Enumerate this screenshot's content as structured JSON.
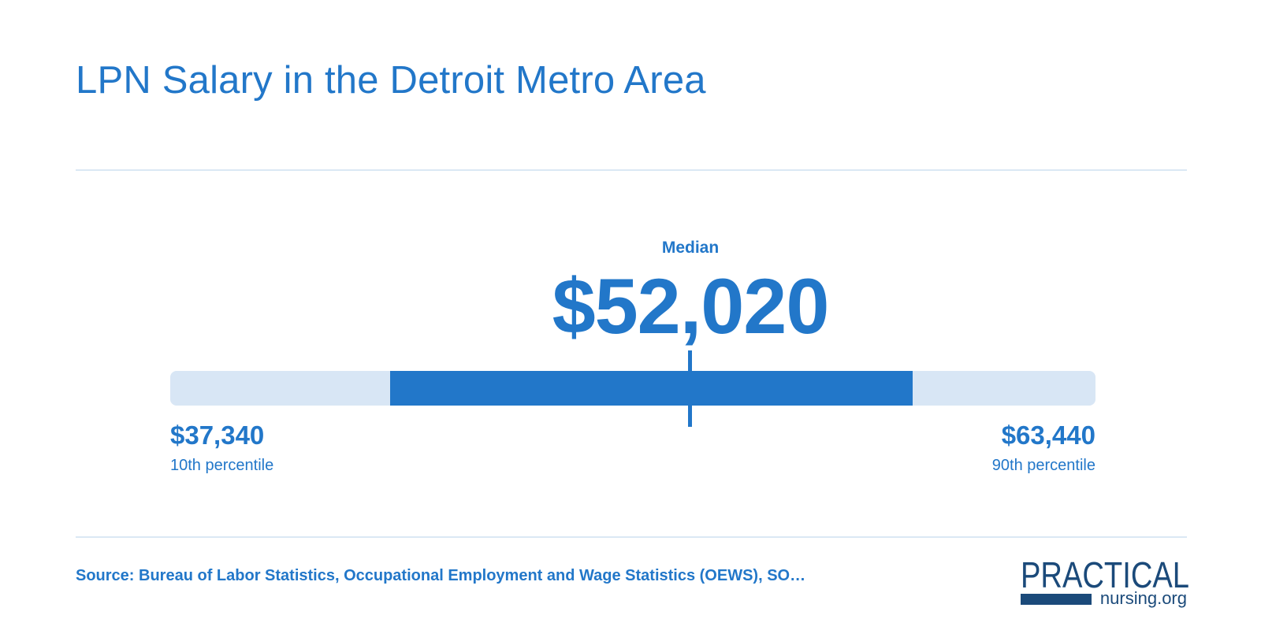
{
  "title": "LPN Salary in the Detroit Metro Area",
  "median": {
    "label": "Median",
    "value_text": "$52,020"
  },
  "low": {
    "value_text": "$37,340",
    "label": "10th percentile"
  },
  "high": {
    "value_text": "$63,440",
    "label": "90th percentile"
  },
  "source": "Source: Bureau of Labor Statistics, Occupational Employment and Wage Statistics (OEWS), SO…",
  "logo": {
    "word": "PRACTICAL",
    "domain": "nursing.org"
  },
  "colors": {
    "accent": "#2277c9",
    "track": "#d8e6f5",
    "divider": "#dbe8f4",
    "logo_navy": "#1b4a7a"
  },
  "chart_data": {
    "type": "range",
    "title": "LPN Salary in the Detroit Metro Area",
    "unit": "USD per year",
    "percentile_10": 37340,
    "median": 52020,
    "percentile_90": 63440,
    "highlight_range_of_scale": [
      0.238,
      0.802
    ],
    "median_position_of_scale": 0.562,
    "labels": {
      "median": "Median",
      "percentile_10": "10th percentile",
      "percentile_90": "90th percentile"
    }
  }
}
